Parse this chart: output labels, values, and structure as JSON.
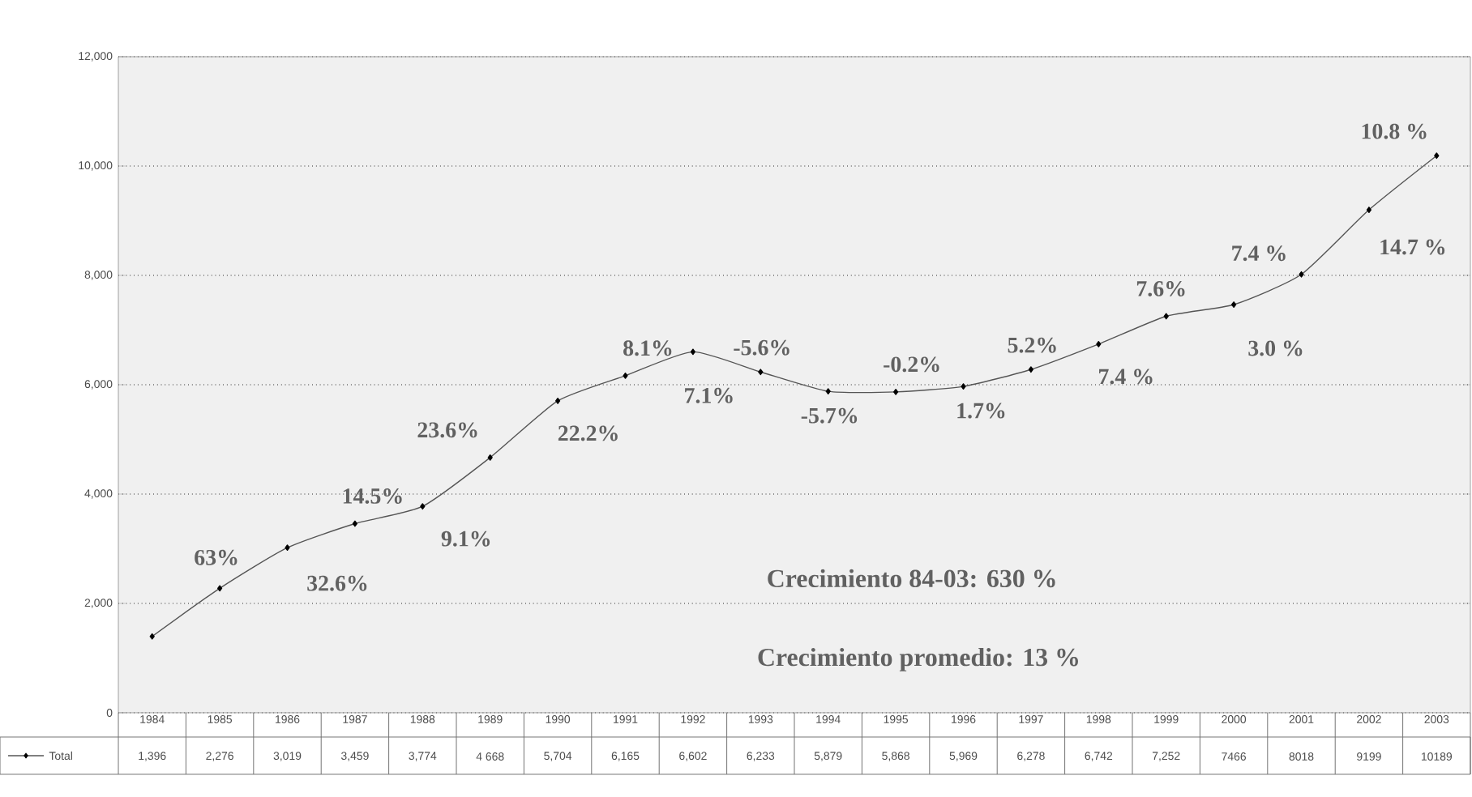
{
  "chart_data": {
    "type": "line",
    "categories": [
      "1984",
      "1985",
      "1986",
      "1987",
      "1988",
      "1989",
      "1990",
      "1991",
      "1992",
      "1993",
      "1994",
      "1995",
      "1996",
      "1997",
      "1998",
      "1999",
      "2000",
      "2001",
      "2002",
      "2003"
    ],
    "series": [
      {
        "name": "Total",
        "color": "#555555",
        "values": [
          1396,
          2276,
          3019,
          3459,
          3774,
          4668,
          5704,
          6165,
          6602,
          6233,
          5879,
          5868,
          5969,
          6278,
          6742,
          7252,
          7466,
          8018,
          9199,
          10189
        ],
        "value_labels": [
          "1,396",
          "2,276",
          "3,019",
          "3,459",
          "3,774",
          "4 668",
          "5,704",
          "6,165",
          "6,602",
          "6,233",
          "5,879",
          "5,868",
          "5,969",
          "6,278",
          "6,742",
          "7,252",
          "7466",
          "8018",
          "9199",
          "10189"
        ]
      }
    ],
    "ylim": [
      0,
      12000
    ],
    "yticks": [
      0,
      {
        "value": 2000,
        "label": "2,000"
      },
      {
        "value": 4000,
        "label": "4,000"
      },
      {
        "value": 6000,
        "label": "6,000"
      },
      {
        "value": 8000,
        "label": "8,000"
      },
      {
        "value": 10000,
        "label": "10,000"
      },
      {
        "value": 12000,
        "label": "12,000"
      }
    ],
    "grid": "y",
    "marker": "diamond",
    "line_style": "solid",
    "legend": "bottom left",
    "annotations": [
      {
        "text": "63%",
        "x": "1985",
        "y": 2276
      },
      {
        "text": "32.6%",
        "x": "1986",
        "y": 3019
      },
      {
        "text": "14.5%",
        "x": "1987",
        "y": 3459
      },
      {
        "text": "9.1%",
        "x": "1988",
        "y": 3774
      },
      {
        "text": "23.6%",
        "x": "1989",
        "y": 4668
      },
      {
        "text": "22.2%",
        "x": "1990",
        "y": 5704
      },
      {
        "text": "8.1%",
        "x": "1991",
        "y": 6165
      },
      {
        "text": "7.1%",
        "x": "1992",
        "y": 6602
      },
      {
        "text": "-5.6%",
        "x": "1993",
        "y": 6233
      },
      {
        "text": "-5.7%",
        "x": "1994",
        "y": 5879
      },
      {
        "text": "-0.2%",
        "x": "1995",
        "y": 5868
      },
      {
        "text": "1.7%",
        "x": "1996",
        "y": 5969
      },
      {
        "text": "5.2%",
        "x": "1997",
        "y": 6278
      },
      {
        "text": "7.4 %",
        "x": "1998",
        "y": 6742
      },
      {
        "text": "7.6%",
        "x": "1999",
        "y": 7252
      },
      {
        "text": "3.0 %",
        "x": "2000",
        "y": 7466
      },
      {
        "text": "7.4 %",
        "x": "2001",
        "y": 8018
      },
      {
        "text": "14.7 %",
        "x": "2002",
        "y": 9199
      },
      {
        "text": "10.8 %",
        "x": "2003",
        "y": 10189
      },
      "Crecimiento 84-03:  630 %",
      "Crecimiento promedio:  13 %"
    ]
  }
}
